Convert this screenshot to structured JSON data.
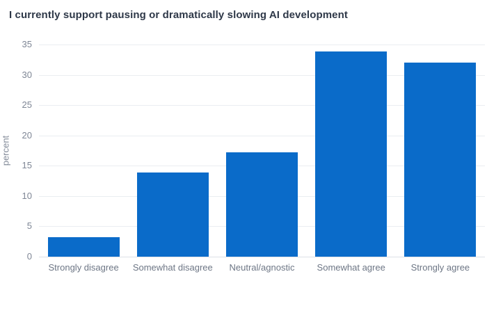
{
  "chart_data": {
    "type": "bar",
    "title": "I currently support pausing or dramatically slowing AI development",
    "categories": [
      "Strongly disagree",
      "Somewhat disagree",
      "Neutral/agnostic",
      "Somewhat agree",
      "Strongly agree"
    ],
    "values": [
      3.2,
      13.9,
      17.2,
      33.8,
      32.0
    ],
    "xlabel": "",
    "ylabel": "percent",
    "ylim": [
      0,
      35
    ],
    "yticks": [
      0,
      5,
      10,
      15,
      20,
      25,
      30,
      35
    ],
    "grid": "horizontal",
    "legend": "none",
    "bar_color": "#0a6bc9",
    "background_color": "#ffffff",
    "title_color": "#2e3848",
    "tick_label_color": "#7e8695",
    "category_label_color": "#6d7685",
    "gridline_color": "#eaedf1"
  }
}
